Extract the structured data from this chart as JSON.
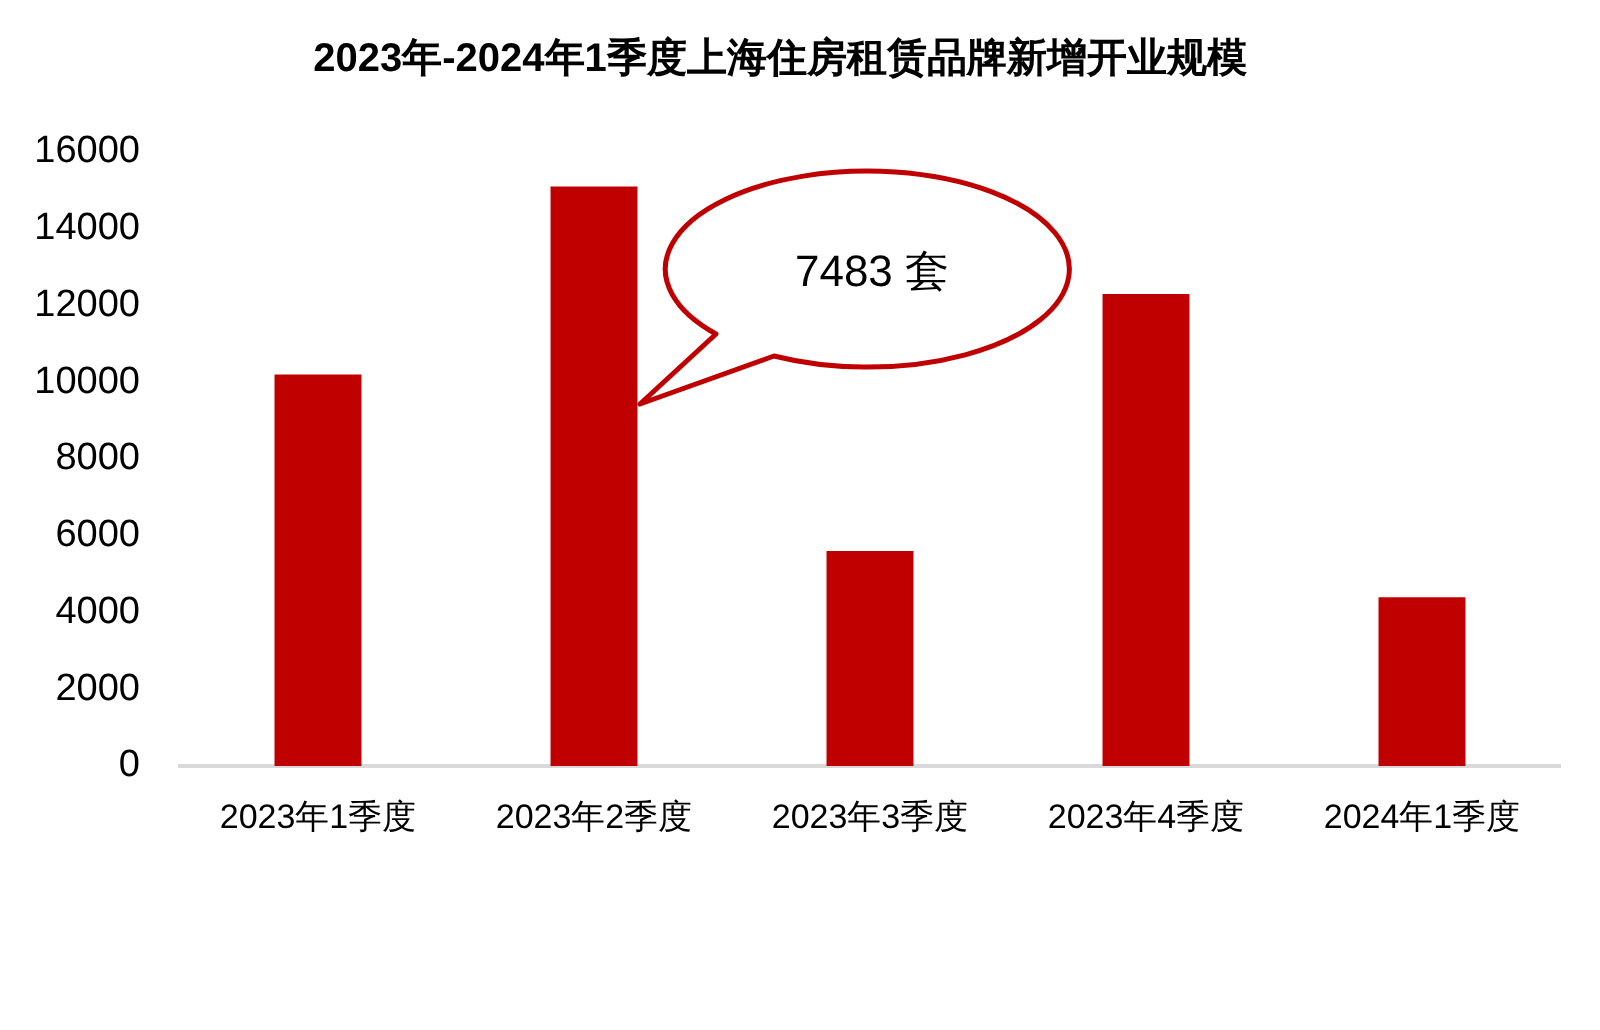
{
  "chart_data": {
    "type": "bar",
    "title": "2023年-2024年1季度上海住房租赁品牌新增开业规模",
    "categories": [
      "2023年1季度",
      "2023年2季度",
      "2023年3季度",
      "2023年4季度",
      "2024年1季度"
    ],
    "values": [
      10200,
      15100,
      5600,
      12300,
      4400
    ],
    "color": "#c00000",
    "ylim": [
      0,
      16000
    ],
    "yticks": [
      0,
      2000,
      4000,
      6000,
      8000,
      10000,
      12000,
      14000,
      16000
    ],
    "annotations": [
      "7483 套"
    ]
  }
}
